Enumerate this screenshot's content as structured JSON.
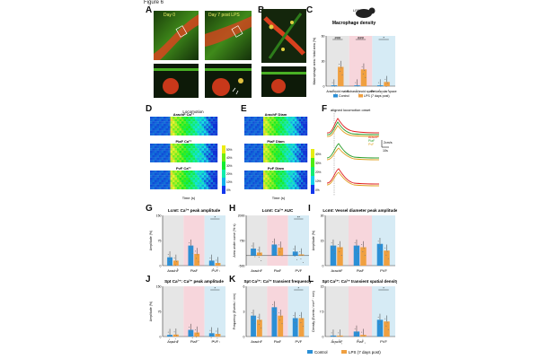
{
  "figure_label": "Figure 6",
  "panels": {
    "A": {
      "label": "A",
      "day0": "Day 0",
      "day7": "Day 7 post LPS"
    },
    "B": {
      "label": "B"
    },
    "C": {
      "label": "C",
      "title": "Macrophage density",
      "mouse_label": "LPS",
      "ylabel": "Macrophage area / total area (%)",
      "categories": [
        "Arachnoid mater",
        "Subarachnoid space",
        "Perivascular space"
      ],
      "legend": [
        "Control",
        "LPS (7 days post)"
      ],
      "sig": [
        "###",
        "###",
        "*"
      ]
    },
    "D": {
      "label": "D",
      "locomotion": "Locomotion",
      "traces": [
        "ArachF Ca²⁺",
        "PiaF Ca²⁺",
        "PvF Ca²⁺"
      ],
      "aligned": "aligned locomotion onset",
      "xlabel": "Time (s)",
      "colorbar": [
        "0%",
        "10%",
        "20%",
        "30%",
        "40%",
        "50%"
      ]
    },
    "E": {
      "label": "E",
      "traces": [
        "ArachF Diam",
        "PiaF Diam",
        "PvF Diam"
      ],
      "xlabel": "Time (s)",
      "colorbar": [
        "0%",
        "10%",
        "20%",
        "30%",
        "40%"
      ]
    },
    "F": {
      "label": "F",
      "aligned": "aligned locomotion onset",
      "legend": [
        "ArachF",
        "PiaF",
        "PvF"
      ],
      "scale_y": "2cm/s",
      "scale_x": "10s"
    },
    "G": {
      "label": "G",
      "title": "Lcmt: Ca²⁺ peak amplitude",
      "ylabel": "Amplitude (%)",
      "sig": "*"
    },
    "H": {
      "label": "H",
      "title": "Lcmt: Ca²⁺ AUC",
      "ylabel": "Area under curve (%·s)",
      "sig": "**"
    },
    "I": {
      "label": "I",
      "title": "Lcmt: Vessel diameter peak amplitude",
      "ylabel": "Amplitude (%)"
    },
    "J": {
      "label": "J",
      "title": "Spt Ca²⁺: Ca²⁺ peak amplitude",
      "ylabel": "Amplitude (%)",
      "sig": "*"
    },
    "K": {
      "label": "K",
      "title": "Spt Ca²⁺: Ca²⁺ transient frequency",
      "ylabel": "Frequency (Events / min)",
      "sig": "*"
    },
    "L": {
      "label": "L",
      "title": "Spt Ca²⁺: Ca²⁺ transient spatial density",
      "ylabel": "Density (Events / mm² · min)",
      "sig": "*"
    }
  },
  "categories": [
    "ArachF",
    "PiaF",
    "PVF"
  ],
  "legend": [
    "Control",
    "LPS (7 days post)"
  ],
  "colors": {
    "control": "#2b8fd6",
    "lps": "#f0a040",
    "arach_bg": "#e6e6e6",
    "pia_bg": "#f7d6dc",
    "pvf_bg": "#d6ebf5"
  },
  "chart_data": [
    {
      "panel": "C",
      "type": "bar",
      "categories": [
        "Arachnoid mater",
        "Subarachnoid space",
        "Perivascular space"
      ],
      "series": [
        {
          "name": "Control",
          "values": [
            1,
            1,
            1
          ]
        },
        {
          "name": "LPS (7 days post)",
          "values": [
            23,
            20,
            5
          ]
        }
      ],
      "ylim": [
        0,
        60
      ]
    },
    {
      "panel": "G",
      "type": "bar",
      "categories": [
        "ArachF",
        "PiaF",
        "PVF"
      ],
      "series": [
        {
          "name": "Control",
          "values": [
            25,
            60,
            15
          ]
        },
        {
          "name": "LPS (7 days post)",
          "values": [
            15,
            35,
            8
          ]
        }
      ],
      "ylim": [
        0,
        150
      ]
    },
    {
      "panel": "H",
      "type": "bar",
      "categories": [
        "ArachF",
        "PiaF",
        "PVF"
      ],
      "series": [
        {
          "name": "Control",
          "values": [
            350,
            550,
            200
          ]
        },
        {
          "name": "LPS (7 days post)",
          "values": [
            150,
            400,
            60
          ]
        }
      ],
      "ylim": [
        -500,
        2000
      ]
    },
    {
      "panel": "I",
      "type": "bar",
      "categories": [
        "ArachF",
        "PiaF",
        "PVF"
      ],
      "series": [
        {
          "name": "Control",
          "values": [
            12,
            12,
            13
          ]
        },
        {
          "name": "LPS (7 days post)",
          "values": [
            11,
            11,
            9
          ]
        }
      ],
      "ylim": [
        0,
        30
      ]
    },
    {
      "panel": "J",
      "type": "bar",
      "categories": [
        "ArachF",
        "PiaF",
        "PVF"
      ],
      "series": [
        {
          "name": "Control",
          "values": [
            5,
            20,
            10
          ]
        },
        {
          "name": "LPS (7 days post)",
          "values": [
            6,
            12,
            8
          ]
        }
      ],
      "ylim": [
        0,
        150
      ]
    },
    {
      "panel": "K",
      "type": "bar",
      "categories": [
        "ArachF",
        "PiaF",
        "PVF"
      ],
      "series": [
        {
          "name": "Control",
          "values": [
            2.5,
            3.5,
            2.2
          ]
        },
        {
          "name": "LPS (7 days post)",
          "values": [
            2,
            2.5,
            2.2
          ]
        }
      ],
      "ylim": [
        0,
        6
      ]
    },
    {
      "panel": "L",
      "type": "bar",
      "categories": [
        "ArachF",
        "PiaF",
        "PVF"
      ],
      "series": [
        {
          "name": "Control",
          "values": [
            0.3,
            1.5,
            5
          ]
        },
        {
          "name": "LPS (7 days post)",
          "values": [
            0.3,
            0.5,
            4.5
          ]
        }
      ],
      "ylim": [
        0,
        15
      ]
    }
  ]
}
